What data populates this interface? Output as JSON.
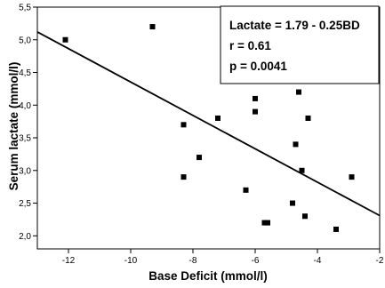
{
  "chart_data": {
    "type": "scatter",
    "xlabel": "Base Deficit (mmol/l)",
    "ylabel": "Serum lactate (mmol/l)",
    "xlim": [
      -13,
      -2
    ],
    "ylim": [
      1.8,
      5.5
    ],
    "xticks": [
      -12,
      -10,
      -8,
      -6,
      -4,
      -2
    ],
    "xtick_labels": [
      "-12",
      "-10",
      "-8",
      "-6",
      "-4",
      "-2"
    ],
    "yticks": [
      2.0,
      2.5,
      3.0,
      3.5,
      4.0,
      4.5,
      5.0,
      5.5
    ],
    "ytick_labels": [
      "2,0",
      "2,5",
      "3,0",
      "3,5",
      "4,0",
      "4,5",
      "5,0",
      "5,5"
    ],
    "points": [
      {
        "x": -12.1,
        "y": 5.0
      },
      {
        "x": -9.3,
        "y": 5.2
      },
      {
        "x": -8.3,
        "y": 3.7
      },
      {
        "x": -8.3,
        "y": 2.9
      },
      {
        "x": -7.8,
        "y": 3.2
      },
      {
        "x": -7.2,
        "y": 3.8
      },
      {
        "x": -6.3,
        "y": 2.7
      },
      {
        "x": -6.0,
        "y": 4.1
      },
      {
        "x": -6.0,
        "y": 3.9
      },
      {
        "x": -5.7,
        "y": 2.2
      },
      {
        "x": -5.6,
        "y": 2.2
      },
      {
        "x": -4.8,
        "y": 2.5
      },
      {
        "x": -4.7,
        "y": 3.4
      },
      {
        "x": -4.6,
        "y": 4.2
      },
      {
        "x": -4.5,
        "y": 3.0
      },
      {
        "x": -4.4,
        "y": 2.3
      },
      {
        "x": -4.3,
        "y": 3.8
      },
      {
        "x": -3.4,
        "y": 2.1
      },
      {
        "x": -2.9,
        "y": 2.9
      }
    ],
    "regression_line": {
      "x": [
        -13,
        -2
      ],
      "y": [
        5.12,
        2.31
      ]
    },
    "annotation": [
      "Lactate = 1.79 - 0.25BD",
      "r = 0.61",
      "p = 0.0041"
    ],
    "grid": false,
    "marker": "square",
    "color": "#000000"
  }
}
